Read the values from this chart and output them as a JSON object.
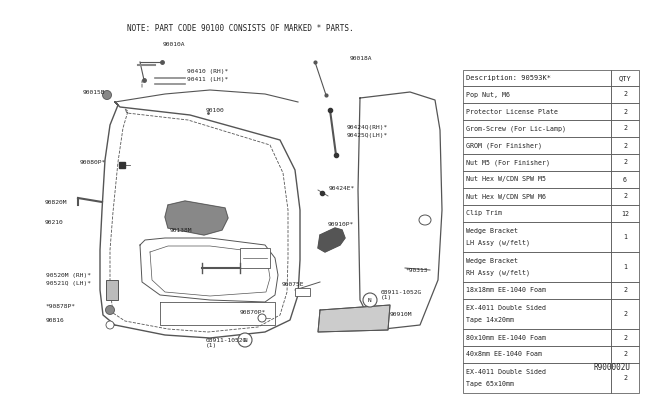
{
  "background_color": "#ffffff",
  "note_text": "NOTE: PART CODE 90100 CONSISTS OF MARKED * PARTS.",
  "ref_code": "R900002U",
  "table_header": [
    "Description: 90593K*",
    "QTY"
  ],
  "table_rows": [
    [
      "Pop Nut, M6",
      "2"
    ],
    [
      "Protector License Plate",
      "2"
    ],
    [
      "Grom-Screw (For Lic-Lamp)",
      "2"
    ],
    [
      "GROM (For Finisher)",
      "2"
    ],
    [
      "Nut M5 (For Finisher)",
      "2"
    ],
    [
      "Nut Hex W/CDN SPW M5",
      "6"
    ],
    [
      "Nut Hex W/CDN SPW M6",
      "2"
    ],
    [
      "Clip Trim",
      "12"
    ],
    [
      "Wedge Bracket\nLH Assy (w/felt)",
      "1"
    ],
    [
      "Wedge Bracket\nRH Assy (w/felt)",
      "1"
    ],
    [
      "18x18mm EE-1040 Foam",
      "2"
    ],
    [
      "EX-4011 Double Sided\nTape 14x20mm",
      "2"
    ],
    [
      "80x10mm EE-1040 Foam",
      "2"
    ],
    [
      "40x8mm EE-1040 Foam",
      "2"
    ],
    [
      "EX-4011 Double Sided\nTape 65x10mm",
      "2"
    ]
  ],
  "line_color": "#555555",
  "text_color": "#222222",
  "table_bg": "#ffffff",
  "table_border": "#444444"
}
